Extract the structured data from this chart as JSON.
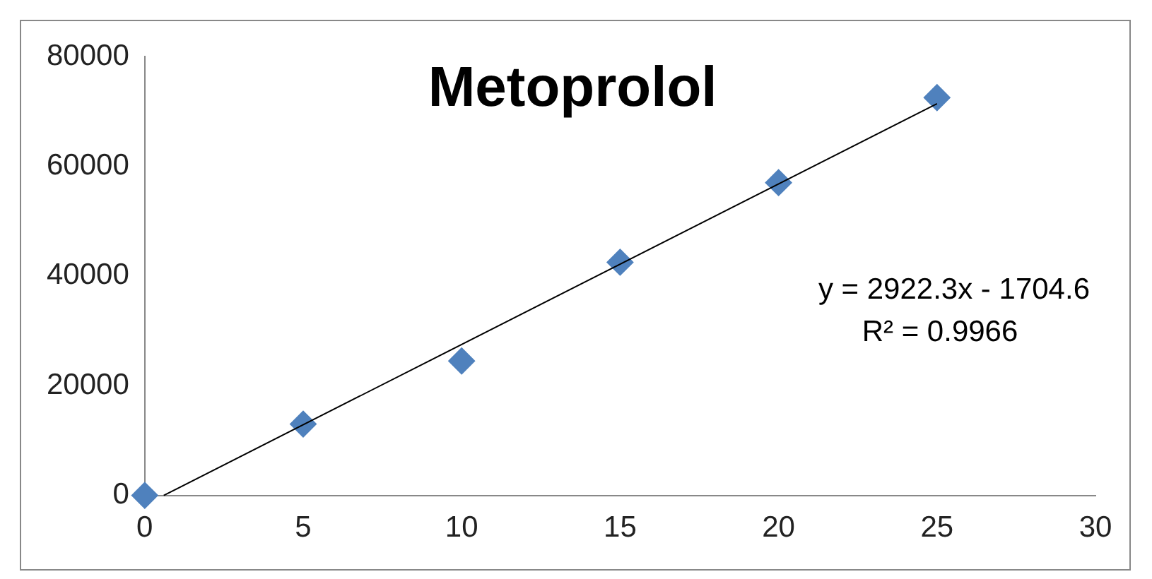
{
  "chart_data": {
    "type": "scatter",
    "title": "Metoprolol",
    "x": [
      0,
      5,
      10,
      15,
      20,
      25
    ],
    "series": [
      {
        "type": "scatter",
        "color": "#4f81bd",
        "values": [
          0,
          13000,
          24500,
          42500,
          57000,
          72500
        ],
        "marker": "diamond"
      },
      {
        "type": "line",
        "color": "#000000",
        "x": [
          0.6,
          25
        ],
        "values": [
          0,
          71400
        ],
        "marker": "none"
      }
    ],
    "xlim": [
      0,
      30
    ],
    "xticks": [
      0,
      5,
      10,
      15,
      20,
      25,
      30
    ],
    "ylim": [
      0,
      80000
    ],
    "yticks": [
      0,
      20000,
      40000,
      60000,
      80000
    ],
    "grid": false,
    "legend": false,
    "annotations": [
      "y = 2922.3x - 1704.6",
      "R² = 0.9966"
    ]
  }
}
